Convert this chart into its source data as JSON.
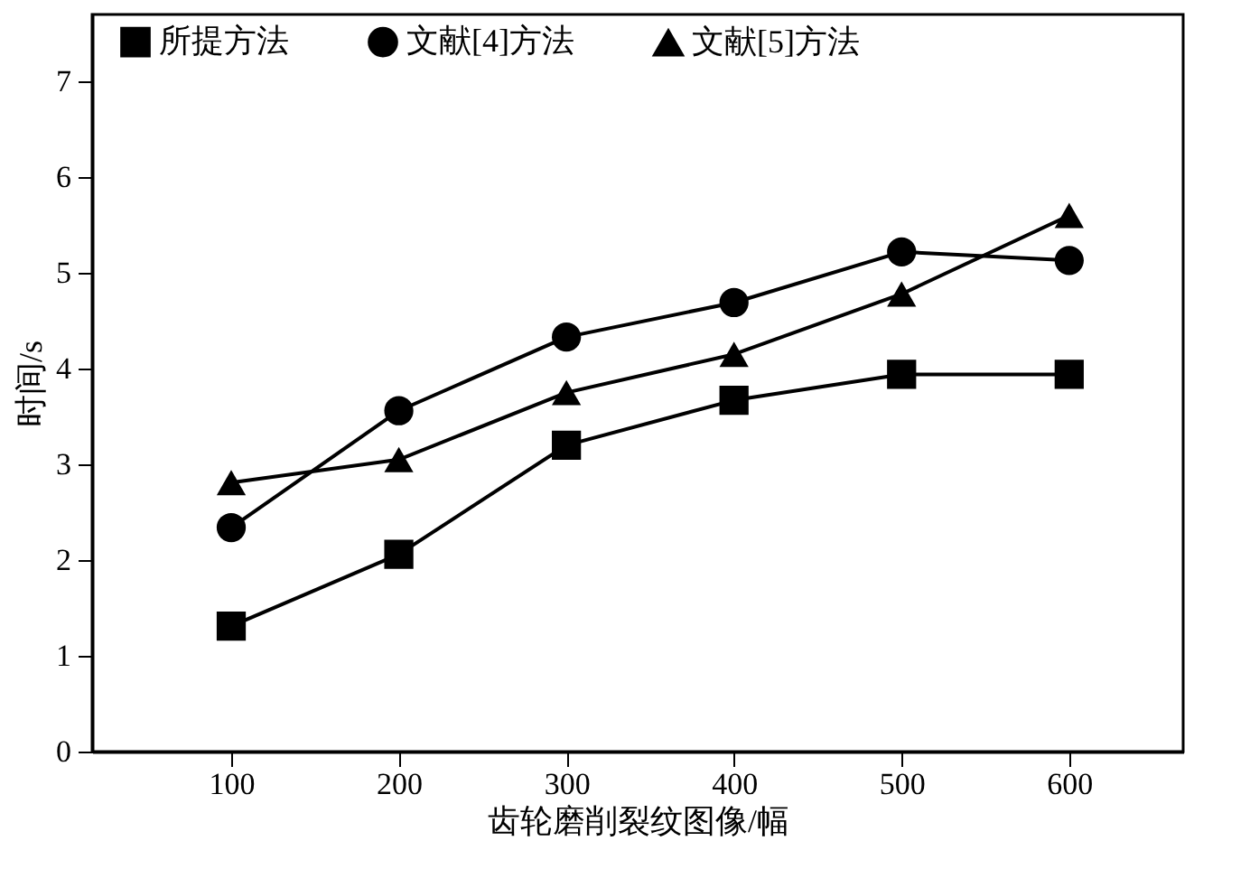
{
  "chart_data": {
    "type": "line",
    "xlabel": "齿轮磨削裂纹图像/幅",
    "ylabel": "时间/s",
    "x": [
      100,
      200,
      300,
      400,
      500,
      600
    ],
    "xlim": [
      17,
      668
    ],
    "xticks": [
      100,
      200,
      300,
      400,
      500,
      600
    ],
    "ylim": [
      0,
      7.7
    ],
    "yticks": [
      0,
      1,
      2,
      3,
      4,
      5,
      6,
      7
    ],
    "grid": false,
    "legend": "top",
    "line_style": "solid",
    "series": [
      {
        "name": "所提方法",
        "color": "#000000",
        "marker": "square",
        "values": [
          1.31,
          2.06,
          3.2,
          3.67,
          3.94,
          3.94
        ]
      },
      {
        "name": "文献[4]方法",
        "color": "#000000",
        "marker": "circle",
        "values": [
          2.34,
          3.56,
          4.33,
          4.69,
          5.22,
          5.13
        ]
      },
      {
        "name": "文献[5]方法",
        "color": "#000000",
        "marker": "triangle",
        "values": [
          2.81,
          3.05,
          3.75,
          4.15,
          4.78,
          5.6
        ]
      }
    ]
  }
}
